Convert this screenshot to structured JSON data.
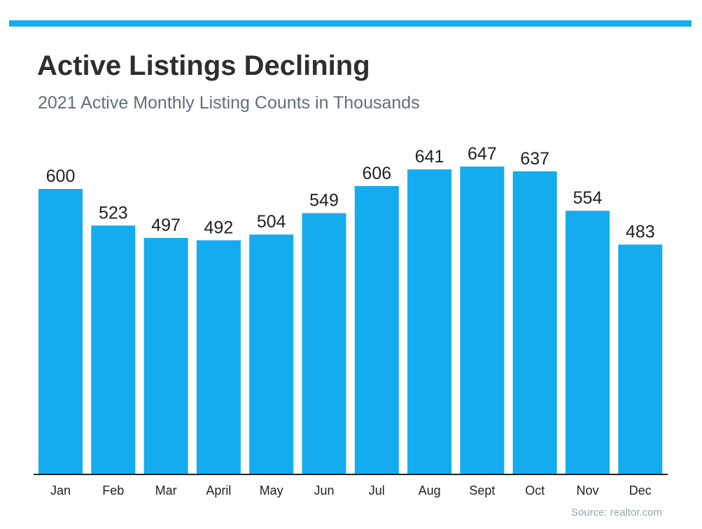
{
  "colors": {
    "accent": "#14acef",
    "title": "#2e2e2e",
    "subtitle": "#5f7078",
    "axis": "#222222",
    "source": "#9aa4aa"
  },
  "chart_data": {
    "type": "bar",
    "title": "Active Listings Declining",
    "subtitle": "2021 Active Monthly Listing Counts in Thousands",
    "categories": [
      "Jan",
      "Feb",
      "Mar",
      "April",
      "May",
      "Jun",
      "Jul",
      "Aug",
      "Sept",
      "Oct",
      "Nov",
      "Dec"
    ],
    "values": [
      600,
      523,
      497,
      492,
      504,
      549,
      606,
      641,
      647,
      637,
      554,
      483
    ],
    "data_labels": [
      "600",
      "523",
      "497",
      "492",
      "504",
      "549",
      "606",
      "641",
      "647",
      "637",
      "554",
      "483"
    ],
    "ylim": [
      0,
      647
    ],
    "grid": false,
    "legend": "none",
    "source": "Source: realtor.com"
  }
}
